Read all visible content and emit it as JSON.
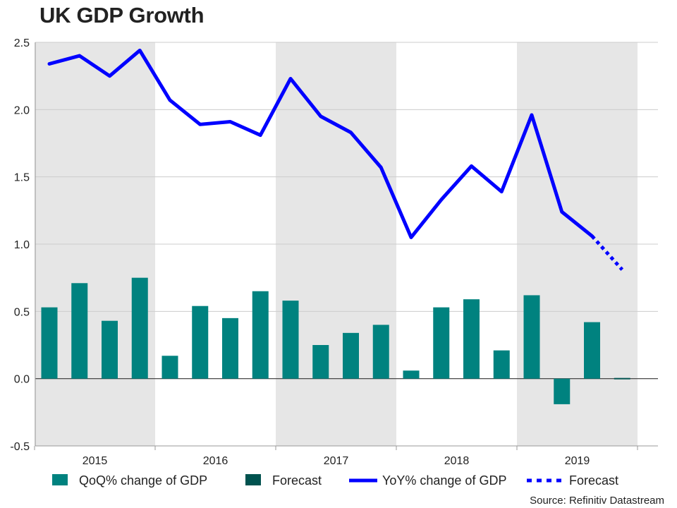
{
  "chart_data": {
    "type": "bar+line",
    "title": "UK GDP Growth",
    "source": "Source: Refinitiv Datastream",
    "ylim": [
      -0.5,
      2.5
    ],
    "yticks": [
      "2.5",
      "2.0",
      "1.5",
      "1.0",
      "0.5",
      "0.0",
      "-0.5"
    ],
    "ytick_values": [
      2.5,
      2.0,
      1.5,
      1.0,
      0.5,
      0.0,
      -0.5
    ],
    "years": [
      "2015",
      "2016",
      "2017",
      "2018",
      "2019"
    ],
    "quarters": [
      "2015 Q1",
      "2015 Q2",
      "2015 Q3",
      "2015 Q4",
      "2016 Q1",
      "2016 Q2",
      "2016 Q3",
      "2016 Q4",
      "2017 Q1",
      "2017 Q2",
      "2017 Q3",
      "2017 Q4",
      "2018 Q1",
      "2018 Q2",
      "2018 Q3",
      "2018 Q4",
      "2019 Q1",
      "2019 Q2",
      "2019 Q3",
      "2019 Q4"
    ],
    "series": [
      {
        "name": "QoQ% change of GDP",
        "type": "bar",
        "color": "#00827f",
        "values": [
          0.53,
          0.71,
          0.43,
          0.75,
          0.17,
          0.54,
          0.45,
          0.65,
          0.58,
          0.25,
          0.34,
          0.4,
          0.06,
          0.53,
          0.59,
          0.21,
          0.62,
          -0.19,
          0.42,
          null
        ]
      },
      {
        "name": "Forecast",
        "type": "bar",
        "color": "#00524f",
        "values": [
          null,
          null,
          null,
          null,
          null,
          null,
          null,
          null,
          null,
          null,
          null,
          null,
          null,
          null,
          null,
          null,
          null,
          null,
          null,
          -0.01
        ]
      },
      {
        "name": "YoY% change of GDP",
        "type": "line",
        "color": "#0000ff",
        "values": [
          2.34,
          2.4,
          2.25,
          2.44,
          2.07,
          1.89,
          1.91,
          1.81,
          2.23,
          1.95,
          1.83,
          1.57,
          1.05,
          1.33,
          1.58,
          1.39,
          1.96,
          1.24,
          1.06,
          null
        ]
      },
      {
        "name": "Forecast",
        "type": "line-dotted",
        "color": "#0000ff",
        "values": [
          null,
          null,
          null,
          null,
          null,
          null,
          null,
          null,
          null,
          null,
          null,
          null,
          null,
          null,
          null,
          null,
          null,
          null,
          1.06,
          0.81
        ]
      }
    ],
    "legend": [
      {
        "label": "QoQ% change of GDP",
        "kind": "bar",
        "color": "#00827f"
      },
      {
        "label": "Forecast",
        "kind": "bar",
        "color": "#00524f"
      },
      {
        "label": "YoY% change of GDP",
        "kind": "line",
        "color": "#0000ff"
      },
      {
        "label": "Forecast",
        "kind": "dotted",
        "color": "#0000ff"
      }
    ],
    "shaded_years": [
      "2015",
      "2017",
      "2019"
    ],
    "gridlines": true,
    "legend_position": "bottom"
  }
}
